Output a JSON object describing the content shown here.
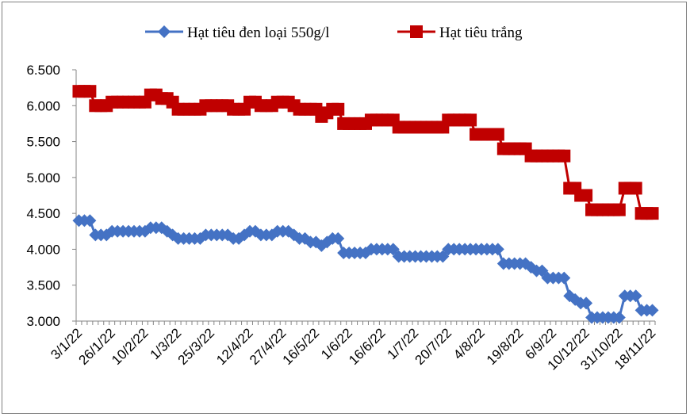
{
  "chart_data": {
    "type": "line",
    "title": "",
    "xlabel": "",
    "ylabel": "",
    "ylim": [
      3000,
      6500
    ],
    "yticks": [
      3000,
      3500,
      4000,
      4500,
      5000,
      5500,
      6000,
      6500
    ],
    "ytick_labels": [
      "3.000",
      "3.500",
      "4.000",
      "4.500",
      "5.000",
      "5.500",
      "6.000",
      "6.500"
    ],
    "xtick_labels": [
      "3/1/22",
      "26/1/22",
      "10/2/22",
      "1/3/22",
      "25/3/22",
      "12/4/22",
      "27/4/22",
      "16/5/22",
      "1/6/22",
      "16/6/22",
      "1/7/22",
      "20/7/22",
      "4/8/22",
      "19/8/22",
      "6/9/22",
      "10/12/22",
      "31/10/22",
      "18/11/22"
    ],
    "grid": false,
    "legend_position": "top",
    "series": [
      {
        "name": "Hạt tiêu đen loại 550g/l",
        "color": "#4472c4",
        "marker": "diamond",
        "values": [
          4400,
          4400,
          4400,
          4200,
          4200,
          4200,
          4250,
          4250,
          4250,
          4250,
          4250,
          4250,
          4250,
          4300,
          4300,
          4300,
          4250,
          4200,
          4150,
          4150,
          4150,
          4150,
          4150,
          4200,
          4200,
          4200,
          4200,
          4200,
          4150,
          4150,
          4200,
          4250,
          4250,
          4200,
          4200,
          4200,
          4250,
          4250,
          4250,
          4200,
          4150,
          4150,
          4100,
          4100,
          4050,
          4100,
          4150,
          4150,
          3950,
          3950,
          3950,
          3950,
          3950,
          4000,
          4000,
          4000,
          4000,
          4000,
          3900,
          3900,
          3900,
          3900,
          3900,
          3900,
          3900,
          3900,
          3900,
          4000,
          4000,
          4000,
          4000,
          4000,
          4000,
          4000,
          4000,
          4000,
          4000,
          3800,
          3800,
          3800,
          3800,
          3800,
          3750,
          3700,
          3700,
          3600,
          3600,
          3600,
          3600,
          3350,
          3300,
          3250,
          3250,
          3050,
          3050,
          3050,
          3050,
          3050,
          3050,
          3350,
          3350,
          3350,
          3150,
          3150,
          3150
        ]
      },
      {
        "name": "Hạt tiêu trắng",
        "color": "#c00000",
        "marker": "square",
        "values": [
          6200,
          6200,
          6200,
          6000,
          6000,
          6000,
          6050,
          6050,
          6050,
          6050,
          6050,
          6050,
          6050,
          6150,
          6150,
          6100,
          6100,
          6050,
          5950,
          5950,
          5950,
          5950,
          5950,
          6000,
          6000,
          6000,
          6000,
          6000,
          5950,
          5950,
          5950,
          6050,
          6050,
          6000,
          6000,
          6000,
          6050,
          6050,
          6050,
          6000,
          5950,
          5950,
          5950,
          5950,
          5850,
          5900,
          5950,
          5950,
          5750,
          5750,
          5750,
          5750,
          5750,
          5800,
          5800,
          5800,
          5800,
          5800,
          5700,
          5700,
          5700,
          5700,
          5700,
          5700,
          5700,
          5700,
          5700,
          5800,
          5800,
          5800,
          5800,
          5800,
          5600,
          5600,
          5600,
          5600,
          5600,
          5400,
          5400,
          5400,
          5400,
          5400,
          5300,
          5300,
          5300,
          5300,
          5300,
          5300,
          5300,
          4850,
          4850,
          4750,
          4750,
          4550,
          4550,
          4550,
          4550,
          4550,
          4550,
          4850,
          4850,
          4850,
          4500,
          4500,
          4500
        ]
      }
    ]
  }
}
